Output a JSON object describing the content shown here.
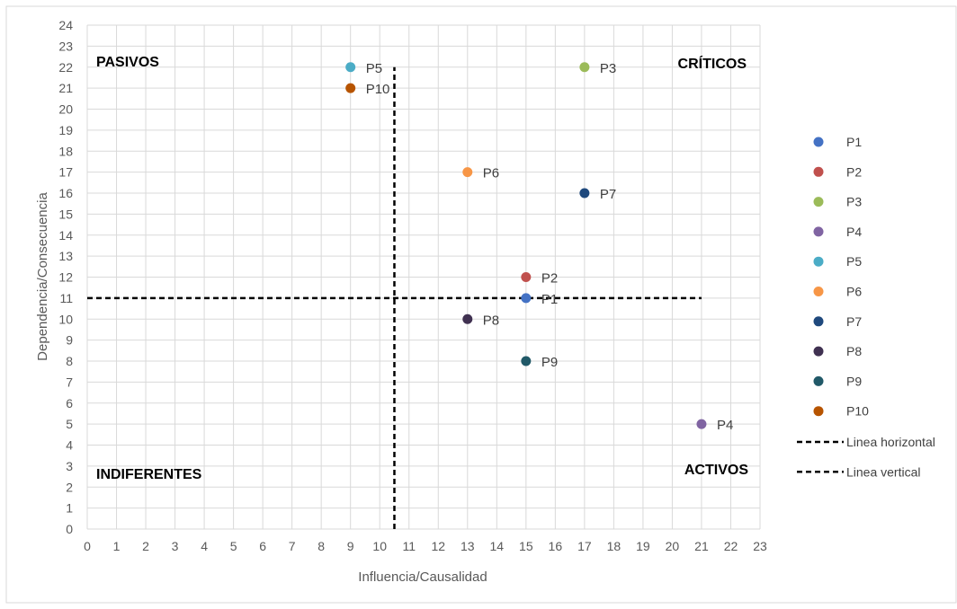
{
  "chart_data": {
    "type": "scatter",
    "title": "",
    "xlabel": "Influencia/Causalidad",
    "ylabel": "Dependencia/Consecuencia",
    "xlim": [
      0,
      23
    ],
    "ylim": [
      0,
      24
    ],
    "x_ticks": [
      0,
      1,
      2,
      3,
      4,
      5,
      6,
      7,
      8,
      9,
      10,
      11,
      12,
      13,
      14,
      15,
      16,
      17,
      18,
      19,
      20,
      21,
      22,
      23
    ],
    "y_ticks": [
      0,
      1,
      2,
      3,
      4,
      5,
      6,
      7,
      8,
      9,
      10,
      11,
      12,
      13,
      14,
      15,
      16,
      17,
      18,
      19,
      20,
      21,
      22,
      23,
      24
    ],
    "grid": true,
    "legend_position": "right",
    "series": [
      {
        "name": "P1",
        "x": 15,
        "y": 11,
        "color": "#4472C4"
      },
      {
        "name": "P2",
        "x": 15,
        "y": 12,
        "color": "#C0504D"
      },
      {
        "name": "P3",
        "x": 17,
        "y": 22,
        "color": "#9BBB59"
      },
      {
        "name": "P4",
        "x": 21,
        "y": 5,
        "color": "#8064A2"
      },
      {
        "name": "P5",
        "x": 9,
        "y": 22,
        "color": "#4BACC6"
      },
      {
        "name": "P6",
        "x": 13,
        "y": 17,
        "color": "#F79646"
      },
      {
        "name": "P7",
        "x": 17,
        "y": 16,
        "color": "#1F497D"
      },
      {
        "name": "P8",
        "x": 13,
        "y": 10,
        "color": "#403151"
      },
      {
        "name": "P9",
        "x": 15,
        "y": 8,
        "color": "#215968"
      },
      {
        "name": "P10",
        "x": 9,
        "y": 21,
        "color": "#B75400"
      }
    ],
    "lines": [
      {
        "name": "Linea horizontal",
        "x": [
          0,
          21
        ],
        "y": [
          11,
          11
        ],
        "color": "#000000",
        "dash": "dashed"
      },
      {
        "name": "Linea vertical",
        "x": [
          10.5,
          10.5
        ],
        "y": [
          0,
          22
        ],
        "color": "#000000",
        "dash": "dashed"
      }
    ],
    "quadrant_labels": [
      {
        "text": "PASIVOS",
        "position": "top-left"
      },
      {
        "text": "CRÍTICOS",
        "position": "top-right"
      },
      {
        "text": "INDIFERENTES",
        "position": "bottom-left"
      },
      {
        "text": "ACTIVOS",
        "position": "bottom-right"
      }
    ]
  }
}
